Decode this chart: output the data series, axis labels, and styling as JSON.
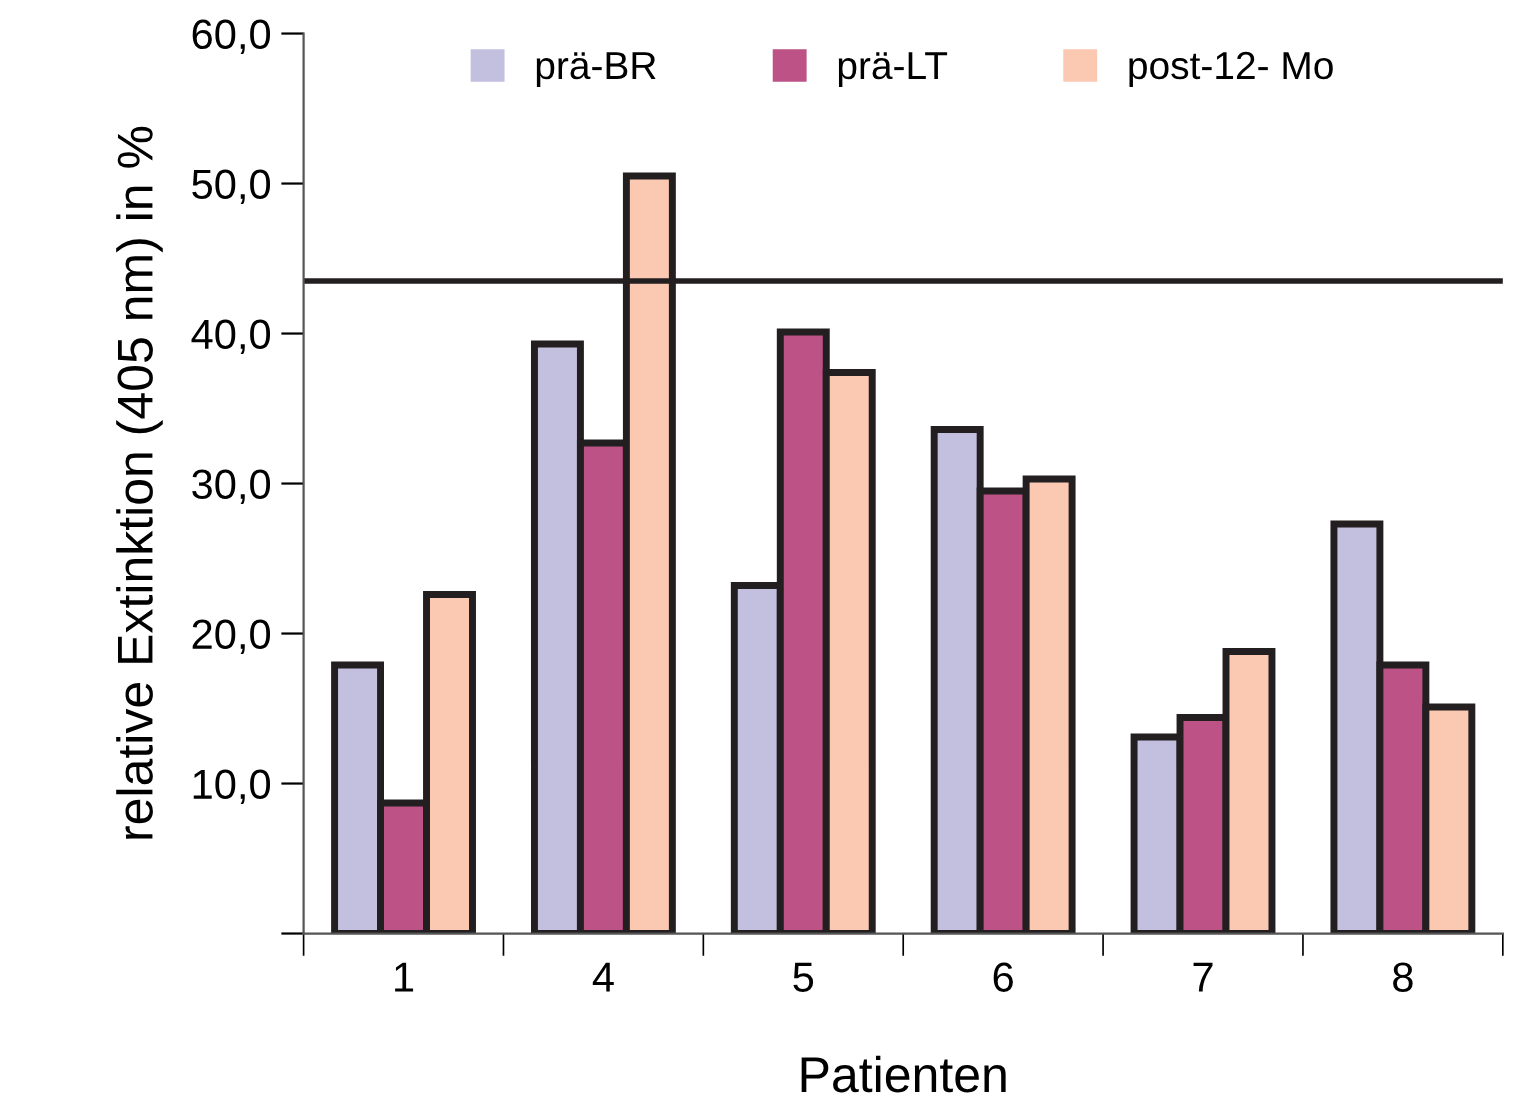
{
  "chart_data": {
    "type": "bar",
    "xlabel": "Patienten",
    "ylabel": "relative Extinktion (405 nm) in %",
    "categories": [
      "1",
      "4",
      "5",
      "6",
      "7",
      "8"
    ],
    "series": [
      {
        "name": "prä-BR",
        "color": "#c3bfdf",
        "values": [
          17.9,
          39.3,
          23.2,
          33.6,
          13.1,
          27.3
        ]
      },
      {
        "name": "prä-LT",
        "color": "#bc5285",
        "values": [
          8.7,
          32.7,
          40.1,
          29.5,
          14.4,
          17.9
        ]
      },
      {
        "name": "post-12- Mo",
        "color": "#fbc8b2",
        "values": [
          22.6,
          50.5,
          37.4,
          30.3,
          18.8,
          15.1
        ]
      }
    ],
    "ylim": [
      0,
      60
    ],
    "yticks": [
      {
        "value": 0,
        "label": null
      },
      {
        "value": 10,
        "label": "10,0"
      },
      {
        "value": 20,
        "label": "20,0"
      },
      {
        "value": 30,
        "label": "30,0"
      },
      {
        "value": 40,
        "label": "40,0"
      },
      {
        "value": 50,
        "label": "50,0"
      },
      {
        "value": 60,
        "label": "60,0"
      }
    ],
    "ref_lines": [
      {
        "axis": "y",
        "value": 43.5,
        "color": "#231f20"
      }
    ],
    "grid": false,
    "legend": "top"
  }
}
